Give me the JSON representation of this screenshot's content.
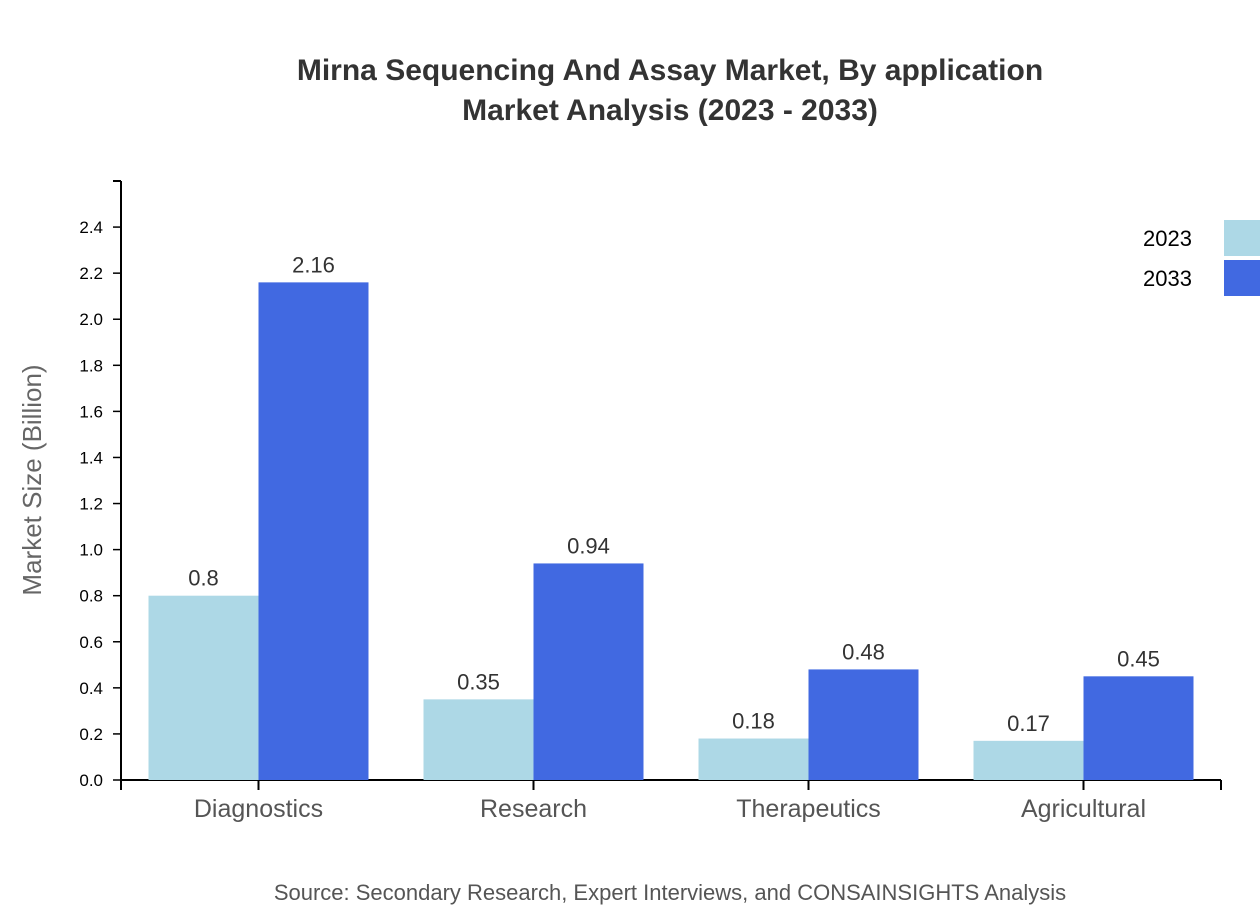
{
  "chart_data": {
    "type": "bar",
    "title": "Mirna Sequencing And Assay Market, By application",
    "subtitle": "Market Analysis (2023 - 2033)",
    "ylabel": "Market Size (Billion)",
    "xlabel": "",
    "categories": [
      "Diagnostics",
      "Research",
      "Therapeutics",
      "Agricultural"
    ],
    "series": [
      {
        "name": "2023",
        "values": [
          0.8,
          0.35,
          0.18,
          0.17
        ],
        "color": "#add8e6"
      },
      {
        "name": "2033",
        "values": [
          2.16,
          0.94,
          0.48,
          0.45
        ],
        "color": "#4169e1"
      }
    ],
    "yticks": [
      "0.0",
      "0.2",
      "0.4",
      "0.6",
      "0.8",
      "1.0",
      "1.2",
      "1.4",
      "1.6",
      "1.8",
      "2.0",
      "2.2",
      "2.4"
    ],
    "ylim": [
      0,
      2.6
    ],
    "grid": false,
    "legend": "top-right",
    "source": "Source: Secondary Research, Expert Interviews, and CONSAINSIGHTS Analysis"
  }
}
